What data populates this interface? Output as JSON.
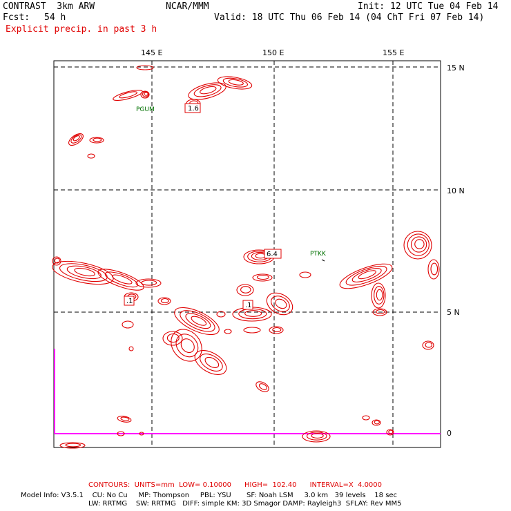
{
  "header": {
    "model": "CONTRAST  3km ARW",
    "center": "NCAR/MMM",
    "init": "Init: 12 UTC Tue 04 Feb 14",
    "fcst_label": "Fcst:",
    "fcst_value": "54 h",
    "valid": "Valid: 18 UTC Thu 06 Feb 14 (04 ChT Fri 07 Feb 14)",
    "field": "Explicit precip. in past 3 h"
  },
  "map": {
    "lon_labels": [
      "145 E",
      "150 E",
      "155 E"
    ],
    "lat_labels": [
      "15 N",
      "10 N",
      "5 N"
    ],
    "colorbar_zero": "0",
    "stations": [
      "PGUM",
      "PTKK"
    ],
    "contour_labels": [
      "1.6",
      "6.4",
      ".1",
      ".1"
    ],
    "contour_color": "#e00000",
    "station_color": "#007000",
    "colorbar_color": "#ff00ff"
  },
  "footer": {
    "contours": "CONTOURS:  UNITS=mm  LOW= 0.10000      HIGH=  102.40      INTERVAL=X  4.0000",
    "model_info": "Model Info: V3.5.1    CU: No Cu     MP: Thompson     PBL: YSU       SF: Noah LSM     3.0 km   39 levels    18 sec",
    "model_info2": "LW: RRTMG    SW: RRTMG   DIFF: simple KM: 3D Smagor DAMP: Rayleigh3  SFLAY: Rev MM5"
  }
}
